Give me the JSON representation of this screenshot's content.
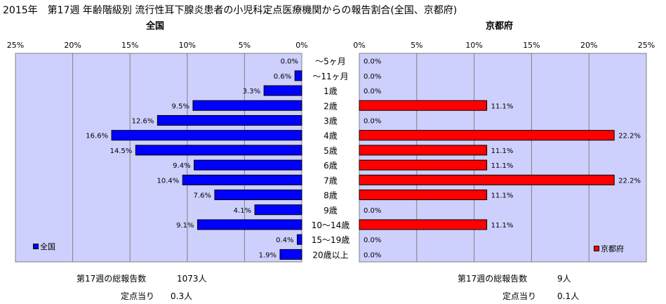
{
  "title": "2015年　第17週 年齢階級別 流行性耳下腺炎患者の小児科定点医療機関からの報告割合(全国、京都府)",
  "chart_data": [
    {
      "type": "bar",
      "orientation": "horizontal",
      "title": "全国",
      "categories": [
        "～5ヶ月",
        "～11ヶ月",
        "1歳",
        "2歳",
        "3歳",
        "4歳",
        "5歳",
        "6歳",
        "7歳",
        "8歳",
        "9歳",
        "10～14歳",
        "15～19歳",
        "20歳以上"
      ],
      "series": [
        {
          "name": "全国",
          "color": "#0000ff",
          "values": [
            0.0,
            0.6,
            3.3,
            9.5,
            12.6,
            16.6,
            14.5,
            9.4,
            10.4,
            7.6,
            4.1,
            9.1,
            0.4,
            1.9
          ],
          "labels": [
            "0.0%",
            "0.6%",
            "3.3%",
            "9.5%",
            "12.6%",
            "16.6%",
            "14.5%",
            "9.4%",
            "10.4%",
            "7.6%",
            "4.1%",
            "9.1%",
            "0.4%",
            "1.9%"
          ]
        }
      ],
      "xlim": [
        0,
        25
      ],
      "x_reversed": true,
      "ticks": [
        "25%",
        "20%",
        "15%",
        "10%",
        "5%",
        "0%"
      ],
      "legend_position": "bottom-left",
      "grid": true,
      "plot_bg": "#cdd0fc"
    },
    {
      "type": "bar",
      "orientation": "horizontal",
      "title": "京都府",
      "categories": [
        "～5ヶ月",
        "～11ヶ月",
        "1歳",
        "2歳",
        "3歳",
        "4歳",
        "5歳",
        "6歳",
        "7歳",
        "8歳",
        "9歳",
        "10～14歳",
        "15～19歳",
        "20歳以上"
      ],
      "series": [
        {
          "name": "京都府",
          "color": "#ff0000",
          "values": [
            0.0,
            0.0,
            0.0,
            11.1,
            0.0,
            22.2,
            11.1,
            11.1,
            22.2,
            11.1,
            0.0,
            11.1,
            0.0,
            0.0
          ],
          "labels": [
            "0.0%",
            "0.0%",
            "0.0%",
            "11.1%",
            "0.0%",
            "22.2%",
            "11.1%",
            "11.1%",
            "22.2%",
            "11.1%",
            "0.0%",
            "11.1%",
            "0.0%",
            "0.0%"
          ]
        }
      ],
      "xlim": [
        0,
        25
      ],
      "ticks": [
        "0%",
        "5%",
        "10%",
        "15%",
        "20%",
        "25%"
      ],
      "legend_position": "bottom-right",
      "grid": true,
      "plot_bg": "#cdd0fc"
    }
  ],
  "footer": {
    "national": {
      "total_label": "第17週の総報告数",
      "total_value": "1073人",
      "per_label": "定点当り",
      "per_value": "0.3人"
    },
    "kyoto": {
      "total_label": "第17週の総報告数",
      "total_value": "9人",
      "per_label": "定点当り",
      "per_value": "0.1人"
    }
  }
}
